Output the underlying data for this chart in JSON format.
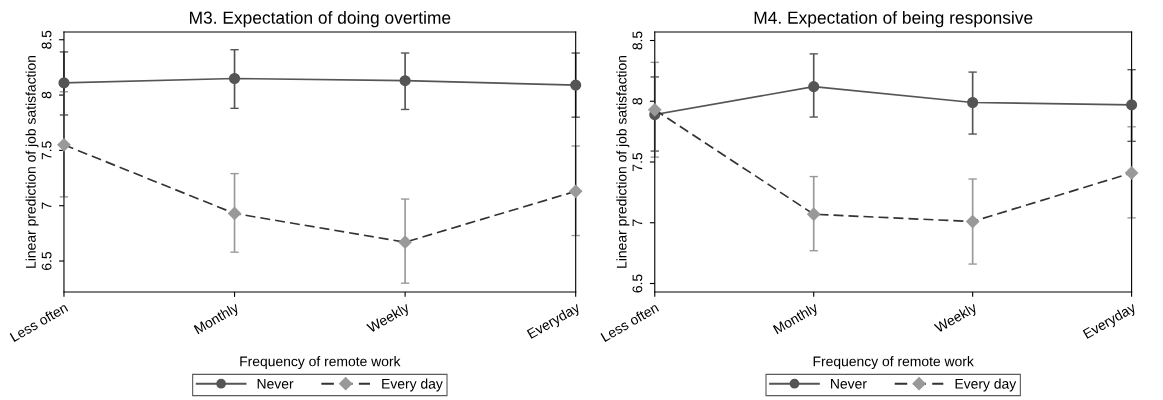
{
  "chart_data": [
    {
      "type": "line",
      "title": "M3. Expectation of doing overtime",
      "xlabel": "Frequency of remote work",
      "ylabel": "Linear prediction of job satisfaction",
      "categories": [
        "Less often",
        "Monthly",
        "Weekly",
        "Everyday"
      ],
      "series": [
        {
          "name": "Never",
          "color": "#555555",
          "marker": "circle",
          "line_style": "solid",
          "values": [
            8.11,
            8.15,
            8.13,
            8.09
          ],
          "errors": [
            [
              7.82,
              8.39
            ],
            [
              7.88,
              8.41
            ],
            [
              7.87,
              8.38
            ],
            [
              7.8,
              8.38
            ]
          ]
        },
        {
          "name": "Every day",
          "color": "#999999",
          "marker": "diamond",
          "line_style": "dashed",
          "values": [
            7.55,
            6.93,
            6.67,
            7.13
          ],
          "errors": [
            [
              7.08,
              8.03
            ],
            [
              6.58,
              7.29
            ],
            [
              6.3,
              7.06
            ],
            [
              6.73,
              7.54
            ]
          ]
        }
      ],
      "ylim": [
        6.22,
        8.57
      ],
      "yticks": [
        6.5,
        7,
        7.5,
        8,
        8.5
      ],
      "grid": false,
      "legend": "bottom"
    },
    {
      "type": "line",
      "title": "M4. Expectation of being responsive",
      "xlabel": "Frequency of remote work",
      "ylabel": "Linear prediction of job satisfaction",
      "categories": [
        "Less often",
        "Monthly",
        "Weekly",
        "Everyday"
      ],
      "series": [
        {
          "name": "Never",
          "color": "#555555",
          "marker": "circle",
          "line_style": "solid",
          "values": [
            7.89,
            8.12,
            7.99,
            7.97
          ],
          "errors": [
            [
              7.59,
              8.2
            ],
            [
              7.87,
              8.39
            ],
            [
              7.73,
              8.24
            ],
            [
              7.67,
              8.26
            ]
          ]
        },
        {
          "name": "Every day",
          "color": "#999999",
          "marker": "diamond",
          "line_style": "dashed",
          "values": [
            7.93,
            7.07,
            7.01,
            7.41
          ],
          "errors": [
            [
              7.54,
              8.32
            ],
            [
              6.77,
              7.38
            ],
            [
              6.66,
              7.36
            ],
            [
              7.04,
              7.79
            ]
          ]
        }
      ],
      "ylim": [
        6.43,
        8.57
      ],
      "yticks": [
        6.5,
        7,
        7.5,
        8,
        8.5
      ],
      "grid": false,
      "legend": "bottom"
    }
  ]
}
